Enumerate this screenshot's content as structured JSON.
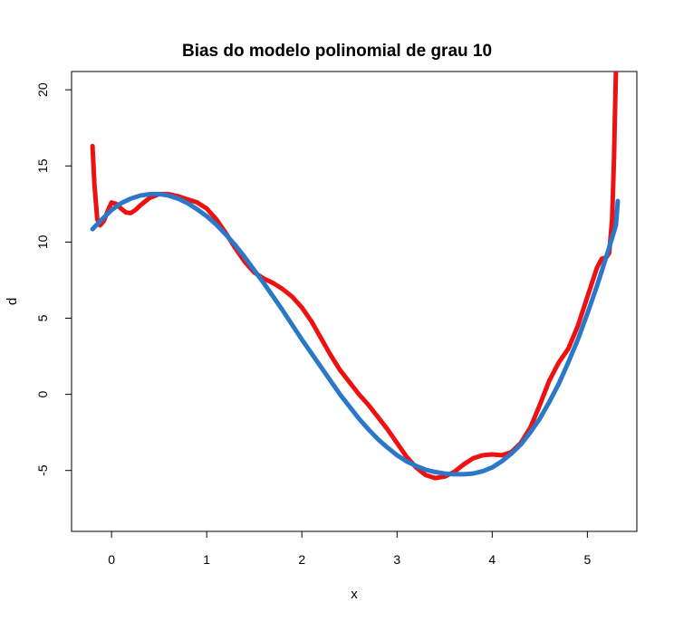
{
  "chart_data": {
    "type": "line",
    "title": "Bias do modelo polinomial de grau 10",
    "xlabel": "x",
    "ylabel": "d",
    "xlim": [
      -0.42,
      5.52
    ],
    "ylim": [
      -9.0,
      21.2
    ],
    "x_ticks": [
      0,
      1,
      2,
      3,
      4,
      5
    ],
    "y_ticks": [
      -5,
      0,
      5,
      10,
      15,
      20
    ],
    "grid": false,
    "legend": "none",
    "series": [
      {
        "color": "#ee1111",
        "width": 5,
        "points": [
          [
            -0.2,
            16.3
          ],
          [
            -0.18,
            13.8
          ],
          [
            -0.15,
            11.5
          ],
          [
            -0.12,
            11.1
          ],
          [
            -0.08,
            11.4
          ],
          [
            -0.03,
            12.2
          ],
          [
            0.0,
            12.6
          ],
          [
            0.05,
            12.5
          ],
          [
            0.1,
            12.2
          ],
          [
            0.15,
            11.95
          ],
          [
            0.2,
            11.9
          ],
          [
            0.25,
            12.1
          ],
          [
            0.3,
            12.4
          ],
          [
            0.4,
            12.9
          ],
          [
            0.5,
            13.15
          ],
          [
            0.6,
            13.15
          ],
          [
            0.7,
            13.0
          ],
          [
            0.8,
            12.8
          ],
          [
            0.9,
            12.6
          ],
          [
            1.0,
            12.2
          ],
          [
            1.1,
            11.5
          ],
          [
            1.2,
            10.6
          ],
          [
            1.3,
            9.6
          ],
          [
            1.4,
            8.7
          ],
          [
            1.5,
            8.0
          ],
          [
            1.6,
            7.6
          ],
          [
            1.7,
            7.3
          ],
          [
            1.8,
            6.9
          ],
          [
            1.9,
            6.4
          ],
          [
            2.0,
            5.7
          ],
          [
            2.1,
            4.8
          ],
          [
            2.2,
            3.7
          ],
          [
            2.3,
            2.6
          ],
          [
            2.4,
            1.6
          ],
          [
            2.5,
            0.8
          ],
          [
            2.6,
            0.0
          ],
          [
            2.7,
            -0.7
          ],
          [
            2.8,
            -1.5
          ],
          [
            2.9,
            -2.3
          ],
          [
            3.0,
            -3.2
          ],
          [
            3.1,
            -4.1
          ],
          [
            3.2,
            -4.8
          ],
          [
            3.3,
            -5.3
          ],
          [
            3.4,
            -5.5
          ],
          [
            3.5,
            -5.4
          ],
          [
            3.6,
            -5.1
          ],
          [
            3.7,
            -4.6
          ],
          [
            3.8,
            -4.2
          ],
          [
            3.9,
            -4.0
          ],
          [
            4.0,
            -3.95
          ],
          [
            4.1,
            -4.0
          ],
          [
            4.2,
            -3.8
          ],
          [
            4.3,
            -3.2
          ],
          [
            4.4,
            -2.2
          ],
          [
            4.5,
            -0.7
          ],
          [
            4.6,
            0.9
          ],
          [
            4.7,
            2.1
          ],
          [
            4.8,
            3.0
          ],
          [
            4.9,
            4.5
          ],
          [
            5.0,
            6.4
          ],
          [
            5.1,
            8.3
          ],
          [
            5.15,
            8.9
          ],
          [
            5.2,
            9.0
          ],
          [
            5.23,
            9.3
          ],
          [
            5.26,
            11.5
          ],
          [
            5.28,
            15.5
          ],
          [
            5.29,
            18.5
          ],
          [
            5.3,
            21.2
          ]
        ]
      },
      {
        "color": "#2b77c8",
        "width": 5,
        "points": [
          [
            -0.2,
            10.85
          ],
          [
            -0.1,
            11.5
          ],
          [
            0.0,
            12.1
          ],
          [
            0.1,
            12.55
          ],
          [
            0.2,
            12.85
          ],
          [
            0.3,
            13.05
          ],
          [
            0.4,
            13.15
          ],
          [
            0.5,
            13.15
          ],
          [
            0.6,
            13.05
          ],
          [
            0.7,
            12.85
          ],
          [
            0.8,
            12.55
          ],
          [
            0.9,
            12.15
          ],
          [
            1.0,
            11.7
          ],
          [
            1.1,
            11.15
          ],
          [
            1.2,
            10.5
          ],
          [
            1.3,
            9.8
          ],
          [
            1.4,
            9.0
          ],
          [
            1.5,
            8.15
          ],
          [
            1.6,
            7.3
          ],
          [
            1.7,
            6.4
          ],
          [
            1.8,
            5.5
          ],
          [
            1.9,
            4.55
          ],
          [
            2.0,
            3.6
          ],
          [
            2.1,
            2.7
          ],
          [
            2.2,
            1.8
          ],
          [
            2.3,
            0.9
          ],
          [
            2.4,
            0.0
          ],
          [
            2.5,
            -0.8
          ],
          [
            2.6,
            -1.6
          ],
          [
            2.7,
            -2.3
          ],
          [
            2.8,
            -2.95
          ],
          [
            2.9,
            -3.5
          ],
          [
            3.0,
            -4.0
          ],
          [
            3.1,
            -4.4
          ],
          [
            3.2,
            -4.7
          ],
          [
            3.3,
            -4.95
          ],
          [
            3.4,
            -5.1
          ],
          [
            3.5,
            -5.2
          ],
          [
            3.6,
            -5.25
          ],
          [
            3.7,
            -5.25
          ],
          [
            3.8,
            -5.2
          ],
          [
            3.9,
            -5.05
          ],
          [
            4.0,
            -4.8
          ],
          [
            4.1,
            -4.4
          ],
          [
            4.2,
            -3.9
          ],
          [
            4.3,
            -3.3
          ],
          [
            4.4,
            -2.5
          ],
          [
            4.5,
            -1.6
          ],
          [
            4.6,
            -0.5
          ],
          [
            4.7,
            0.7
          ],
          [
            4.8,
            2.1
          ],
          [
            4.9,
            3.6
          ],
          [
            5.0,
            5.3
          ],
          [
            5.1,
            7.1
          ],
          [
            5.2,
            9.05
          ],
          [
            5.3,
            11.1
          ],
          [
            5.32,
            12.7
          ]
        ]
      }
    ]
  }
}
